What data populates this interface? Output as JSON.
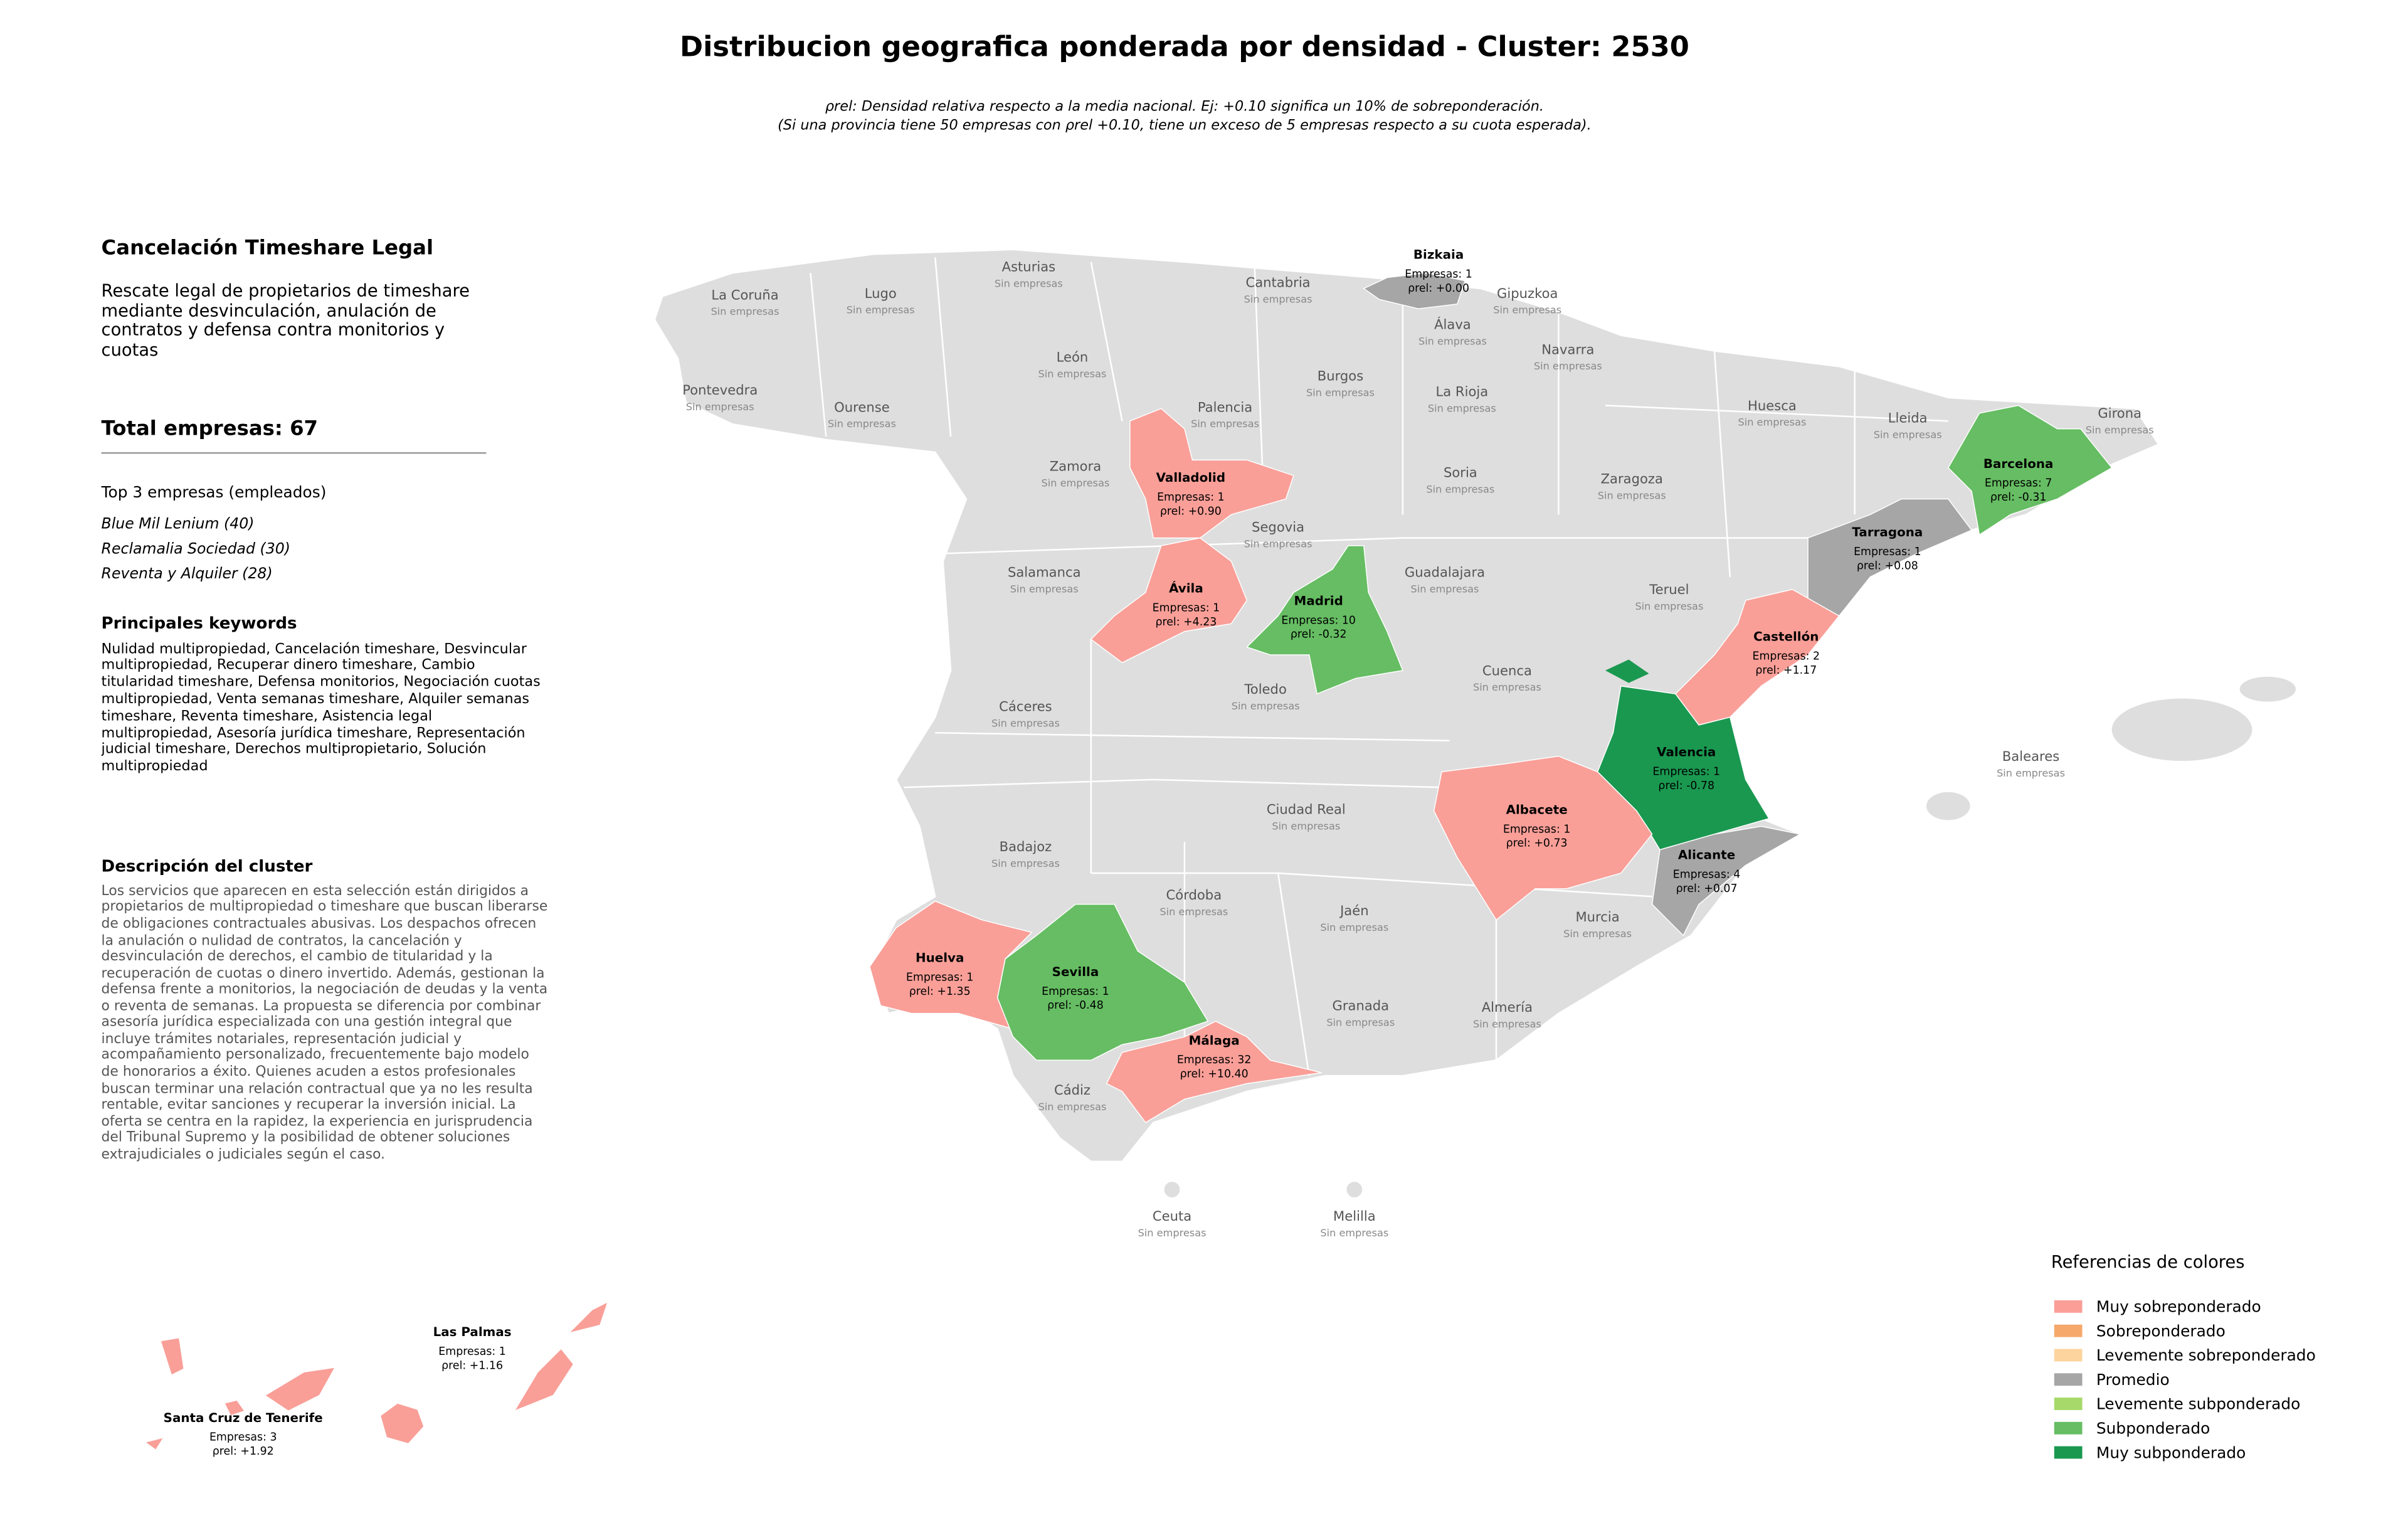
{
  "title": "Distribucion geografica ponderada por densidad - Cluster: 2530",
  "subtitle_lines": [
    "ρrel: Densidad relativa respecto a la media nacional. Ej: +0.10 significa un 10% de sobreponderación.",
    "(Si una provincia tiene 50 empresas con ρrel +0.10, tiene un exceso de 5 empresas respecto a su cuota esperada)."
  ],
  "sidebar": {
    "name": "Cancelación Timeshare Legal",
    "description": "Rescate legal de propietarios de timeshare mediante desvinculación, anulación de contratos y defensa contra monitorios y cuotas",
    "total": "Total empresas: 67",
    "top_heading": "Top 3 empresas (empleados)",
    "top": [
      "Blue Mil Lenium (40)",
      "Reclamalia Sociedad (30)",
      "Reventa y Alquiler (28)"
    ],
    "keywords_heading": "Principales keywords",
    "keywords": "Nulidad multipropiedad, Cancelación timeshare, Desvincular multipropiedad, Recuperar dinero timeshare, Cambio titularidad timeshare, Defensa monitorios, Negociación cuotas multipropiedad, Venta semanas timeshare, Alquiler semanas timeshare, Reventa timeshare, Asistencia legal multipropiedad, Asesoría jurídica timeshare, Representación judicial timeshare, Derechos multipropietario, Solución multipropiedad",
    "cluster_heading": "Descripción del cluster",
    "cluster_description": "Los servicios que aparecen en esta selección están dirigidos a propietarios de multipropiedad o timeshare que buscan liberarse de obligaciones contractuales abusivas. Los despachos ofrecen la anulación o nulidad de contratos, la cancelación y desvinculación de derechos, el cambio de titularidad y la recuperación de cuotas o dinero invertido. Además, gestionan la defensa frente a monitorios, la negociación de deudas y la venta o reventa de semanas. La propuesta se diferencia por combinar asesoría jurídica especializada con una gestión integral que incluye trámites notariales, representación judicial y acompañamiento personalizado, frecuentemente bajo modelo de honorarios a éxito. Quienes acuden a estos profesionales buscan terminar una relación contractual que ya no les resulta rentable, evitar sanciones y recuperar la inversión inicial. La oferta se centra en la rapidez, la experiencia en jurisprudencia del Tribunal Supremo y la posibilidad de obtener soluciones extrajudiciales o judiciales según el caso."
  },
  "provinces": [
    {
      "name": "La Coruña",
      "note": "Sin empresas"
    },
    {
      "name": "Lugo",
      "note": "Sin empresas"
    },
    {
      "name": "Asturias",
      "note": "Sin empresas"
    },
    {
      "name": "Cantabria",
      "note": "Sin empresas"
    },
    {
      "name": "Gipuzkoa",
      "note": "Sin empresas"
    },
    {
      "name": "Álava",
      "note": "Sin empresas"
    },
    {
      "name": "Navarra",
      "note": "Sin empresas"
    },
    {
      "name": "León",
      "note": "Sin empresas"
    },
    {
      "name": "Burgos",
      "note": "Sin empresas"
    },
    {
      "name": "La Rioja",
      "note": "Sin empresas"
    },
    {
      "name": "Pontevedra",
      "note": "Sin empresas"
    },
    {
      "name": "Ourense",
      "note": "Sin empresas"
    },
    {
      "name": "Palencia",
      "note": "Sin empresas"
    },
    {
      "name": "Huesca",
      "note": "Sin empresas"
    },
    {
      "name": "Lleida",
      "note": "Sin empresas"
    },
    {
      "name": "Girona",
      "note": "Sin empresas"
    },
    {
      "name": "Zamora",
      "note": "Sin empresas"
    },
    {
      "name": "Soria",
      "note": "Sin empresas"
    },
    {
      "name": "Zaragoza",
      "note": "Sin empresas"
    },
    {
      "name": "Segovia",
      "note": "Sin empresas"
    },
    {
      "name": "Salamanca",
      "note": "Sin empresas"
    },
    {
      "name": "Guadalajara",
      "note": "Sin empresas"
    },
    {
      "name": "Teruel",
      "note": "Sin empresas"
    },
    {
      "name": "Cuenca",
      "note": "Sin empresas"
    },
    {
      "name": "Toledo",
      "note": "Sin empresas"
    },
    {
      "name": "Cáceres",
      "note": "Sin empresas"
    },
    {
      "name": "Baleares",
      "note": "Sin empresas"
    },
    {
      "name": "Ciudad Real",
      "note": "Sin empresas"
    },
    {
      "name": "Badajoz",
      "note": "Sin empresas"
    },
    {
      "name": "Córdoba",
      "note": "Sin empresas"
    },
    {
      "name": "Jaén",
      "note": "Sin empresas"
    },
    {
      "name": "Murcia",
      "note": "Sin empresas"
    },
    {
      "name": "Granada",
      "note": "Sin empresas"
    },
    {
      "name": "Almería",
      "note": "Sin empresas"
    },
    {
      "name": "Cádiz",
      "note": "Sin empresas"
    },
    {
      "name": "Ceuta",
      "note": "Sin empresas"
    },
    {
      "name": "Melilla",
      "note": "Sin empresas"
    },
    {
      "name": "Bizkaia",
      "companies": "Empresas: 1",
      "rho": "ρrel: +0.00",
      "category": "Promedio"
    },
    {
      "name": "Valladolid",
      "companies": "Empresas: 1",
      "rho": "ρrel: +0.90",
      "category": "Muy sobreponderado"
    },
    {
      "name": "Barcelona",
      "companies": "Empresas: 7",
      "rho": "ρrel: -0.31",
      "category": "Subponderado"
    },
    {
      "name": "Tarragona",
      "companies": "Empresas: 1",
      "rho": "ρrel: +0.08",
      "category": "Promedio"
    },
    {
      "name": "Ávila",
      "companies": "Empresas: 1",
      "rho": "ρrel: +4.23",
      "category": "Muy sobreponderado"
    },
    {
      "name": "Madrid",
      "companies": "Empresas: 10",
      "rho": "ρrel: -0.32",
      "category": "Subponderado"
    },
    {
      "name": "Castellón",
      "companies": "Empresas: 2",
      "rho": "ρrel: +1.17",
      "category": "Muy sobreponderado"
    },
    {
      "name": "Valencia",
      "companies": "Empresas: 1",
      "rho": "ρrel: -0.78",
      "category": "Muy subponderado"
    },
    {
      "name": "Albacete",
      "companies": "Empresas: 1",
      "rho": "ρrel: +0.73",
      "category": "Muy sobreponderado"
    },
    {
      "name": "Alicante",
      "companies": "Empresas: 4",
      "rho": "ρrel: +0.07",
      "category": "Promedio"
    },
    {
      "name": "Huelva",
      "companies": "Empresas: 1",
      "rho": "ρrel: +1.35",
      "category": "Muy sobreponderado"
    },
    {
      "name": "Sevilla",
      "companies": "Empresas: 1",
      "rho": "ρrel: -0.48",
      "category": "Subponderado"
    },
    {
      "name": "Málaga",
      "companies": "Empresas: 32",
      "rho": "ρrel: +10.40",
      "category": "Muy sobreponderado"
    },
    {
      "name": "Las Palmas",
      "companies": "Empresas: 1",
      "rho": "ρrel: +1.16",
      "category": "Muy sobreponderado"
    },
    {
      "name": "Santa Cruz de Tenerife",
      "companies": "Empresas: 3",
      "rho": "ρrel: +1.92",
      "category": "Muy sobreponderado"
    }
  ],
  "legend": {
    "title": "Referencias de colores",
    "items": [
      {
        "label": "Muy sobreponderado",
        "color": "#f99f98"
      },
      {
        "label": "Sobreponderado",
        "color": "#f5a86a"
      },
      {
        "label": "Levemente sobreponderado",
        "color": "#fdd49e"
      },
      {
        "label": "Promedio",
        "color": "#a6a6a6"
      },
      {
        "label": "Levemente subponderado",
        "color": "#a6d96a"
      },
      {
        "label": "Subponderado",
        "color": "#66bd63"
      },
      {
        "label": "Muy subponderado",
        "color": "#1a9850"
      }
    ]
  }
}
